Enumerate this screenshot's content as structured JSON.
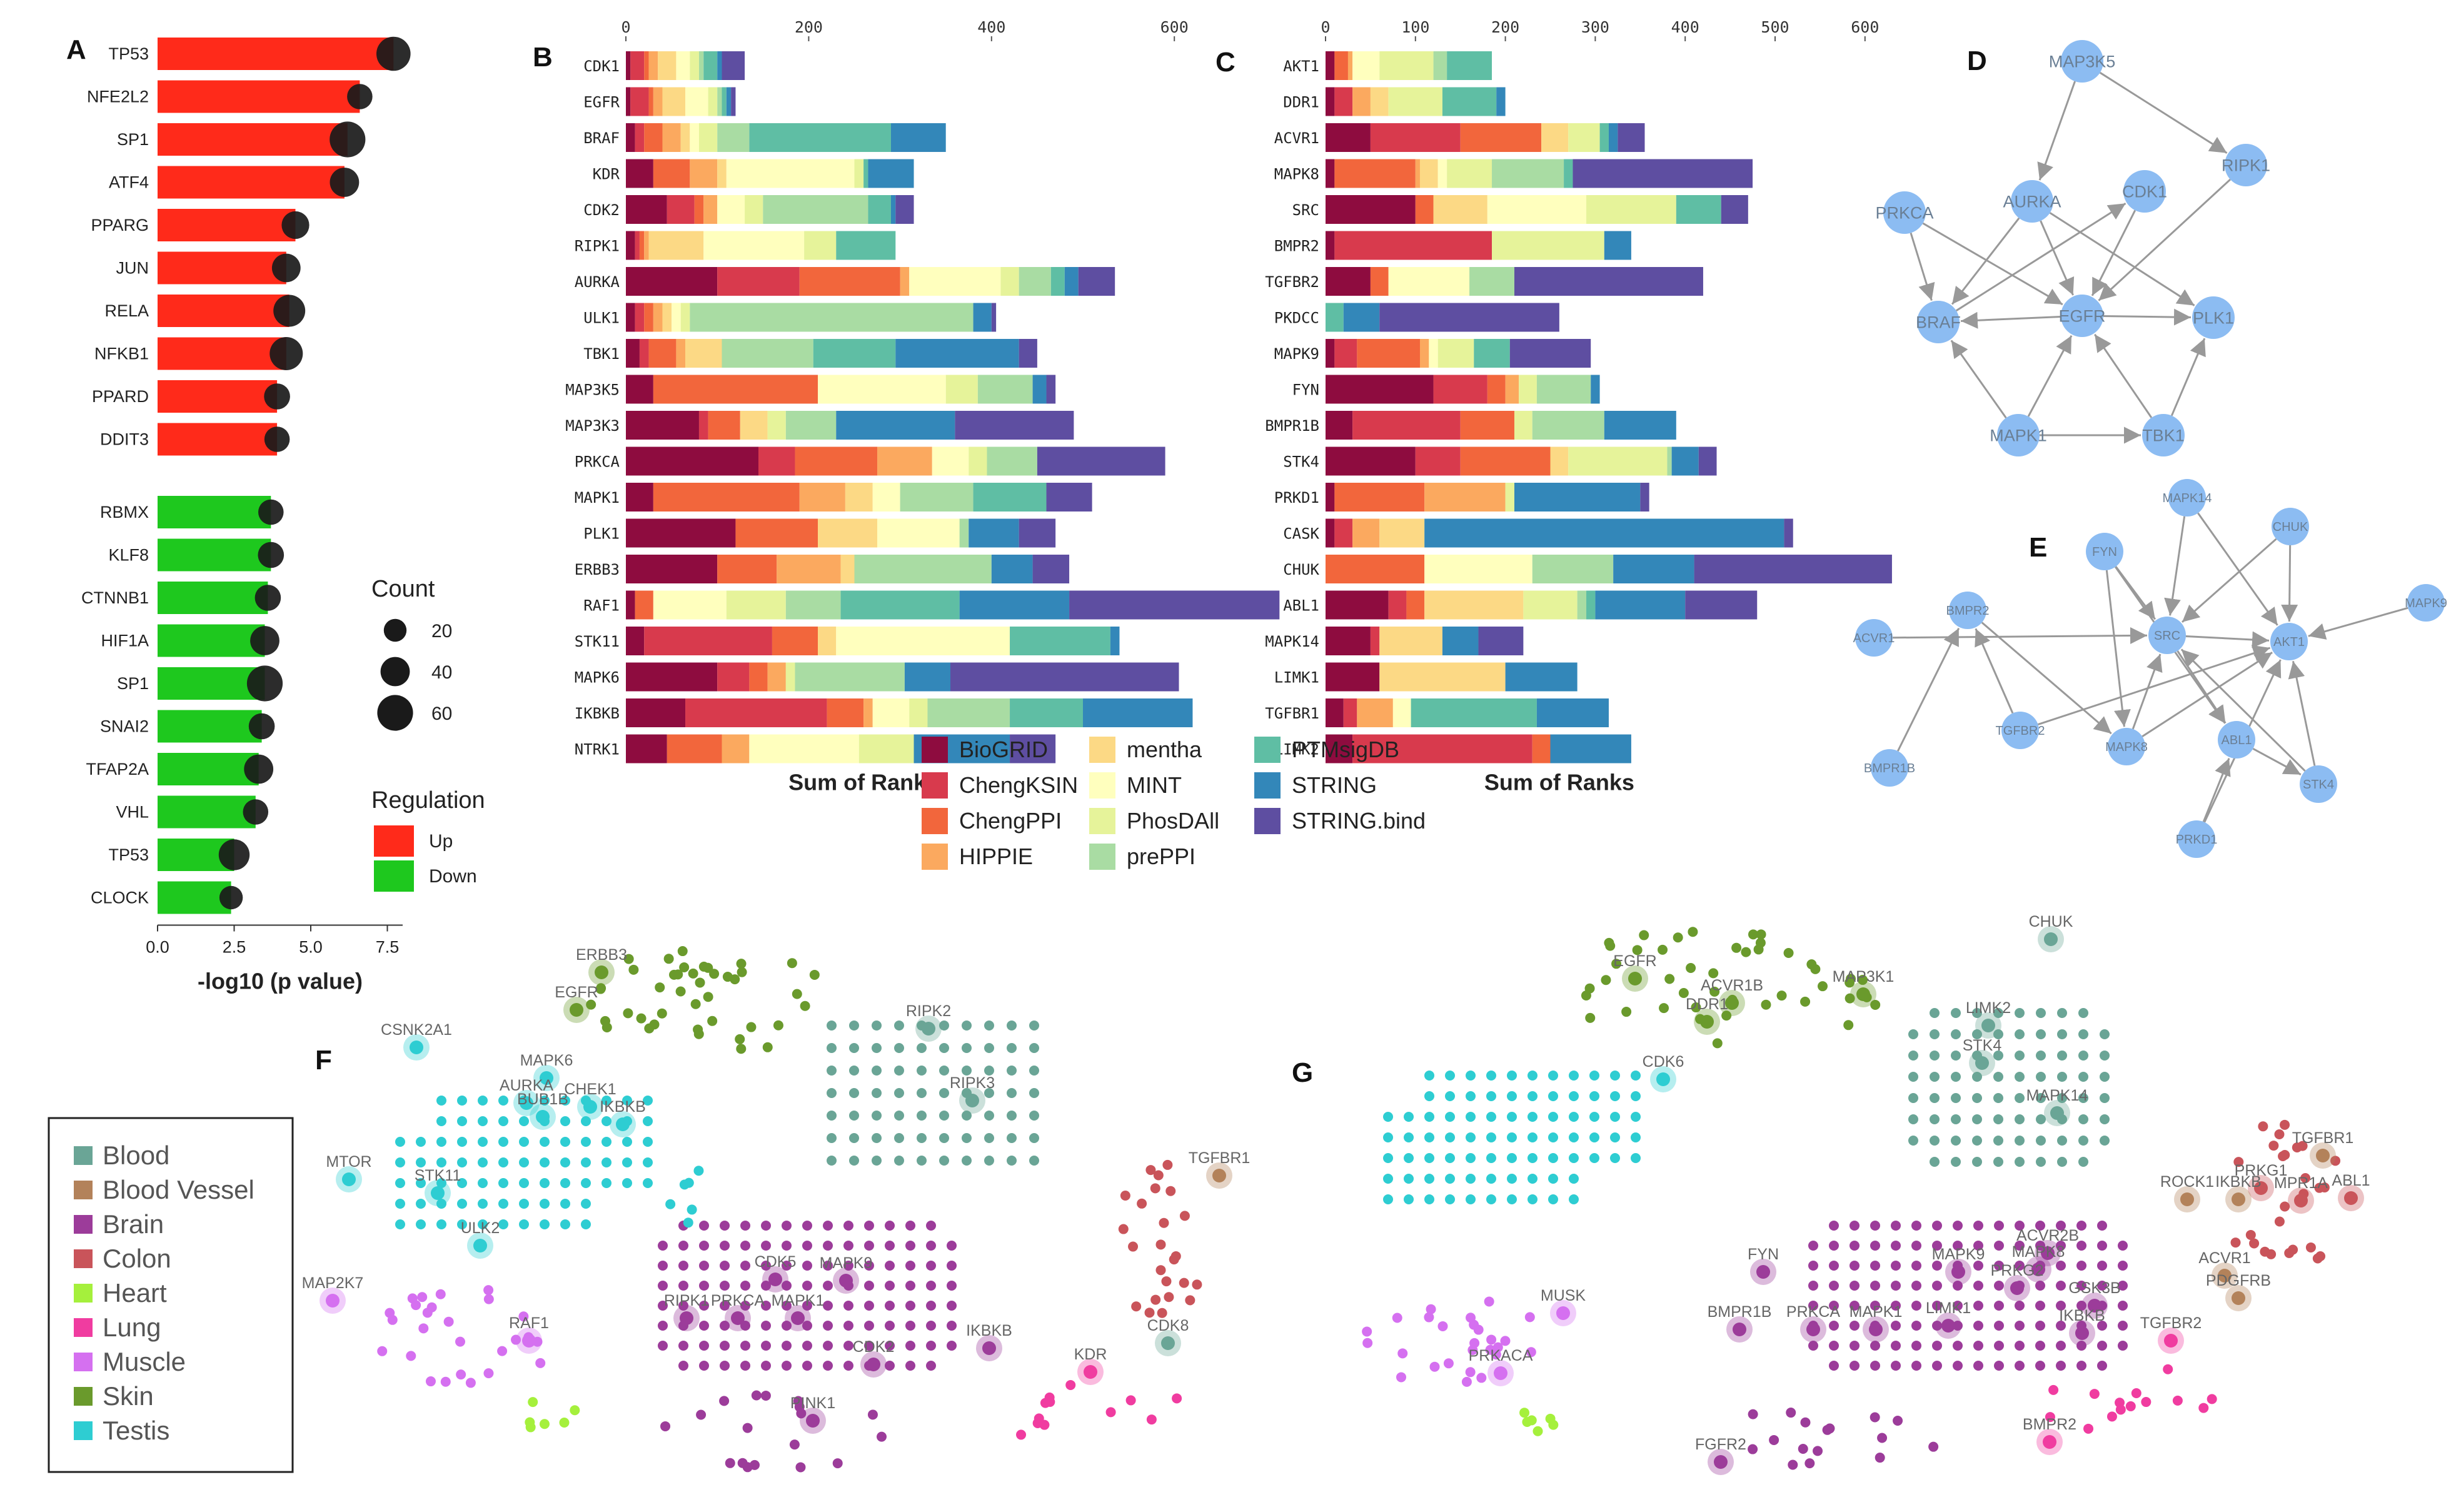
{
  "palette": {
    "up": "#ff2a1a",
    "down": "#1ec81e",
    "dot": "#1a1a1a",
    "node": "#8cbcf2",
    "edge": "#999999",
    "sources": [
      "#8e0c3f",
      "#d83a4d",
      "#f2663c",
      "#fba95f",
      "#fcd985",
      "#ffffbe",
      "#e6f39a",
      "#a9dca3",
      "#5fbea4",
      "#3387b9",
      "#5e4ea1"
    ],
    "tissue": [
      "#6aa596",
      "#b3825a",
      "#9c3c9a",
      "#c9545a",
      "#a5f03c",
      "#f03ca0",
      "#d570f0",
      "#6a9a2c",
      "#2ecdd2"
    ]
  },
  "panel_labels": [
    "A",
    "B",
    "C",
    "D",
    "E",
    "F",
    "G"
  ],
  "chart_data": [
    {
      "panel": "A",
      "type": "bar",
      "orientation": "horizontal",
      "xlabel": "-log10 (p value)",
      "xlim": [
        0,
        8
      ],
      "xticks": [
        "0.0",
        "2.5",
        "5.0",
        "7.5"
      ],
      "categories": [
        "TP53",
        "NFE2L2",
        "SP1",
        "ATF4",
        "PPARG",
        "JUN",
        "RELA",
        "NFKB1",
        "PPARD",
        "DDIT3",
        "RBMX",
        "KLF8",
        "CTNNB1",
        "HIF1A",
        "SP1",
        "SNAI2",
        "TFAP2A",
        "VHL",
        "TP53",
        "CLOCK"
      ],
      "values": [
        7.7,
        6.6,
        6.2,
        6.1,
        4.5,
        4.2,
        4.3,
        4.2,
        3.9,
        3.9,
        3.7,
        3.7,
        3.6,
        3.5,
        3.5,
        3.4,
        3.3,
        3.2,
        2.5,
        2.4
      ],
      "regulation": [
        "Up",
        "Up",
        "Up",
        "Up",
        "Up",
        "Up",
        "Up",
        "Up",
        "Up",
        "Up",
        "Down",
        "Down",
        "Down",
        "Down",
        "Down",
        "Down",
        "Down",
        "Down",
        "Down",
        "Down"
      ],
      "count": [
        55,
        28,
        60,
        40,
        35,
        38,
        48,
        52,
        30,
        28,
        28,
        30,
        30,
        40,
        60,
        30,
        40,
        28,
        45,
        22
      ],
      "legend_count_title": "Count",
      "legend_count": [
        "20",
        "40",
        "60"
      ],
      "legend_reg_title": "Regulation",
      "legend_reg": [
        "Up",
        "Down"
      ]
    },
    {
      "panel": "B",
      "type": "bar",
      "stacked": true,
      "xlabel": "Sum of Ranks",
      "xlim": [
        0,
        650
      ],
      "xticks": [
        "0",
        "200",
        "400",
        "600"
      ],
      "categories": [
        "CDK1",
        "EGFR",
        "BRAF",
        "KDR",
        "CDK2",
        "RIPK1",
        "AURKA",
        "ULK1",
        "TBK1",
        "MAP3K5",
        "MAP3K3",
        "PRKCA",
        "MAPK1",
        "PLK1",
        "ERBB3",
        "RAF1",
        "STK11",
        "MAPK6",
        "IKBKB",
        "NTRK1"
      ],
      "segments": [
        [
          5,
          15,
          5,
          10,
          20,
          15,
          10,
          5,
          15,
          5,
          25
        ],
        [
          5,
          20,
          5,
          10,
          25,
          25,
          10,
          5,
          5,
          5,
          5
        ],
        [
          10,
          10,
          20,
          20,
          10,
          10,
          20,
          35,
          155,
          60,
          0
        ],
        [
          30,
          0,
          40,
          30,
          10,
          140,
          10,
          0,
          5,
          50,
          0
        ],
        [
          45,
          30,
          10,
          15,
          0,
          30,
          20,
          115,
          25,
          5,
          20
        ],
        [
          10,
          5,
          5,
          5,
          60,
          110,
          35,
          0,
          65,
          0,
          0
        ],
        [
          100,
          90,
          110,
          10,
          0,
          100,
          20,
          35,
          15,
          15,
          40
        ],
        [
          10,
          10,
          10,
          10,
          10,
          10,
          10,
          310,
          0,
          20,
          5
        ],
        [
          15,
          10,
          30,
          10,
          40,
          0,
          0,
          100,
          90,
          135,
          20
        ],
        [
          30,
          0,
          180,
          0,
          0,
          140,
          35,
          60,
          0,
          15,
          10
        ],
        [
          80,
          10,
          35,
          0,
          30,
          0,
          20,
          55,
          0,
          130,
          130
        ],
        [
          145,
          40,
          90,
          60,
          0,
          40,
          20,
          55,
          0,
          0,
          140
        ],
        [
          30,
          0,
          160,
          50,
          30,
          30,
          0,
          80,
          80,
          0,
          50
        ],
        [
          120,
          0,
          90,
          0,
          65,
          90,
          0,
          10,
          0,
          55,
          40
        ],
        [
          100,
          0,
          65,
          70,
          15,
          0,
          0,
          150,
          0,
          45,
          40
        ],
        [
          10,
          0,
          20,
          0,
          0,
          80,
          65,
          60,
          130,
          120,
          230
        ],
        [
          20,
          140,
          50,
          0,
          20,
          190,
          0,
          0,
          110,
          10,
          0
        ],
        [
          100,
          35,
          20,
          20,
          0,
          0,
          10,
          120,
          0,
          50,
          250
        ],
        [
          65,
          155,
          40,
          10,
          0,
          40,
          20,
          90,
          80,
          120,
          0
        ],
        [
          45,
          0,
          60,
          30,
          0,
          120,
          60,
          0,
          0,
          105,
          50
        ]
      ],
      "legend": [
        "BioGRID",
        "ChengKSIN",
        "ChengPPI",
        "HIPPIE",
        "mentha",
        "MINT",
        "PhosDAll",
        "prePPI",
        "PTMsigDB",
        "STRING",
        "STRING.bind"
      ]
    },
    {
      "panel": "C",
      "type": "bar",
      "stacked": true,
      "xlabel": "Sum of Ranks",
      "xlim": [
        0,
        650
      ],
      "xticks": [
        "0",
        "100",
        "200",
        "300",
        "400",
        "500",
        "600"
      ],
      "categories": [
        "AKT1",
        "DDR1",
        "ACVR1",
        "MAPK8",
        "SRC",
        "BMPR2",
        "TGFBR2",
        "PKDCC",
        "MAPK9",
        "FYN",
        "BMPR1B",
        "STK4",
        "PRKD1",
        "CASK",
        "CHUK",
        "ABL1",
        "MAPK14",
        "LIMK1",
        "TGFBR1",
        "LIMK2"
      ],
      "segments": [
        [
          10,
          0,
          15,
          5,
          0,
          30,
          60,
          15,
          50,
          0,
          0
        ],
        [
          10,
          20,
          0,
          20,
          20,
          0,
          60,
          0,
          60,
          10,
          0
        ],
        [
          50,
          100,
          90,
          0,
          30,
          0,
          35,
          0,
          10,
          10,
          30
        ],
        [
          10,
          0,
          90,
          5,
          20,
          10,
          50,
          80,
          10,
          0,
          200
        ],
        [
          100,
          0,
          20,
          0,
          60,
          110,
          100,
          0,
          50,
          0,
          30
        ],
        [
          10,
          175,
          0,
          0,
          0,
          0,
          125,
          0,
          0,
          30,
          0
        ],
        [
          50,
          0,
          20,
          0,
          0,
          90,
          0,
          50,
          0,
          0,
          210
        ],
        [
          0,
          0,
          0,
          0,
          0,
          0,
          0,
          0,
          20,
          40,
          200
        ],
        [
          10,
          25,
          70,
          10,
          0,
          10,
          40,
          0,
          40,
          0,
          90
        ],
        [
          120,
          60,
          20,
          15,
          0,
          0,
          20,
          60,
          0,
          10,
          0
        ],
        [
          30,
          120,
          60,
          0,
          0,
          0,
          20,
          80,
          0,
          80,
          0
        ],
        [
          100,
          50,
          100,
          0,
          20,
          0,
          110,
          5,
          0,
          30,
          20
        ],
        [
          10,
          0,
          100,
          90,
          0,
          0,
          10,
          0,
          0,
          140,
          10
        ],
        [
          10,
          20,
          0,
          30,
          50,
          0,
          0,
          0,
          0,
          400,
          10
        ],
        [
          0,
          0,
          110,
          0,
          0,
          120,
          0,
          90,
          0,
          90,
          220
        ],
        [
          70,
          20,
          20,
          0,
          110,
          0,
          60,
          10,
          10,
          100,
          80
        ],
        [
          50,
          10,
          0,
          0,
          70,
          0,
          0,
          0,
          0,
          40,
          50
        ],
        [
          60,
          0,
          0,
          0,
          140,
          0,
          0,
          0,
          0,
          80,
          0
        ],
        [
          20,
          15,
          0,
          40,
          0,
          20,
          0,
          0,
          140,
          80,
          0
        ],
        [
          30,
          200,
          20,
          0,
          0,
          0,
          0,
          0,
          0,
          90,
          0
        ]
      ],
      "legend": [
        "BioGRID",
        "ChengKSIN",
        "ChengPPI",
        "HIPPIE",
        "mentha",
        "MINT",
        "PhosDAll",
        "prePPI",
        "PTMsigDB",
        "STRING",
        "STRING.bind"
      ]
    }
  ],
  "network_d": {
    "nodes": [
      "MAP3K5",
      "RIPK1",
      "PRKCA",
      "AURKA",
      "CDK1",
      "BRAF",
      "EGFR",
      "PLK1",
      "MAPK1",
      "TBK1"
    ],
    "edges": [
      [
        0,
        3
      ],
      [
        0,
        1
      ],
      [
        2,
        5
      ],
      [
        2,
        6
      ],
      [
        3,
        5
      ],
      [
        3,
        6
      ],
      [
        3,
        7
      ],
      [
        4,
        6
      ],
      [
        5,
        4
      ],
      [
        1,
        6
      ],
      [
        6,
        5
      ],
      [
        6,
        7
      ],
      [
        8,
        6
      ],
      [
        8,
        5
      ],
      [
        8,
        9
      ],
      [
        9,
        6
      ],
      [
        9,
        7
      ]
    ]
  },
  "network_e": {
    "nodes": [
      "MAPK14",
      "FYN",
      "CHUK",
      "MAPK9",
      "BMPR2",
      "ACVR1",
      "SRC",
      "AKT1",
      "TGFBR2",
      "MAPK8",
      "ABL1",
      "BMPR1B",
      "STK4",
      "PRKD1"
    ],
    "edges": [
      [
        0,
        6
      ],
      [
        0,
        7
      ],
      [
        1,
        6
      ],
      [
        1,
        10
      ],
      [
        2,
        6
      ],
      [
        2,
        7
      ],
      [
        3,
        7
      ],
      [
        4,
        9
      ],
      [
        5,
        6
      ],
      [
        6,
        7
      ],
      [
        6,
        10
      ],
      [
        8,
        7
      ],
      [
        8,
        4
      ],
      [
        9,
        6
      ],
      [
        9,
        7
      ],
      [
        10,
        12
      ],
      [
        11,
        4
      ],
      [
        12,
        6
      ],
      [
        12,
        7
      ],
      [
        13,
        10
      ],
      [
        13,
        7
      ],
      [
        1,
        9
      ]
    ]
  },
  "tissue_legend": [
    "Blood",
    "Blood Vessel",
    "Brain",
    "Colon",
    "Heart",
    "Lung",
    "Muscle",
    "Skin",
    "Testis"
  ],
  "panel_f_labels": [
    "ERBB3",
    "EGFR",
    "CSNK2A1",
    "MAPK6",
    "AURKA",
    "BUB1B",
    "CHEK1",
    "IKBKB",
    "MTOR",
    "STK11",
    "ULK2",
    "RIPK2",
    "RIPK3",
    "TGFBR1",
    "MAP2K7",
    "RAF1",
    "RIPK1",
    "PRKCA",
    "MAPK1",
    "CDK5",
    "MAPK9",
    "CDK2",
    "PINK1",
    "IKBKB",
    "KDR",
    "CDK8"
  ],
  "panel_g_labels": [
    "EGFR",
    "ACVR1B",
    "DDR1",
    "MAP3K1",
    "CHUK",
    "LIMK2",
    "STK4",
    "MAPK14",
    "CDK6",
    "TGFBR1",
    "PRKG1",
    "ROCK1",
    "IKBKB",
    "MPR1A",
    "ABL1",
    "ACVR1",
    "PDGFRB",
    "FYN",
    "MAPK9",
    "ACVR2B",
    "MAPK8",
    "PRKG2",
    "GSK3B",
    "BMPR1B",
    "PRKCA",
    "MAPK1",
    "LIMK1",
    "IKBKB",
    "TGFBR2",
    "MUSK",
    "PRKACA",
    "FGFR2",
    "BMPR2"
  ]
}
